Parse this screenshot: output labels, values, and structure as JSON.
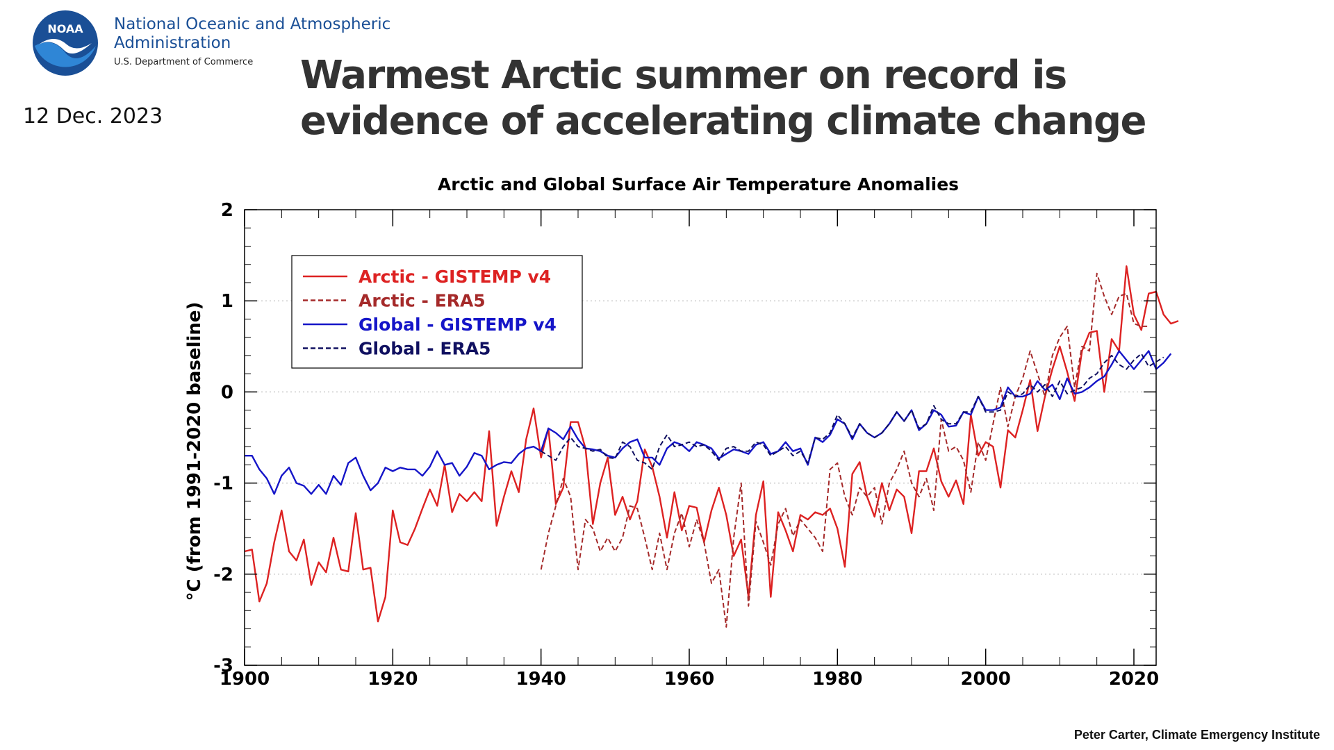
{
  "header": {
    "org_name_line1": "National Oceanic and Atmospheric",
    "org_name_line2": "Administration",
    "org_dept": "U.S. Department of Commerce",
    "logo_text": "NOAA",
    "date": "12 Dec. 2023",
    "headline": "Warmest Arctic summer on record is evidence of accelerating climate change"
  },
  "credit": "Peter Carter, Climate Emergency Institute",
  "colors": {
    "arctic_gistemp": "#dd2222",
    "arctic_era5": "#a52a2a",
    "global_gistemp": "#1515c8",
    "global_era5": "#101060",
    "noaa_blue": "#1a4f96"
  },
  "chart_data": {
    "type": "line",
    "title": "Arctic and Global Surface Air Temperature Anomalies",
    "xlabel": "",
    "ylabel": "°C (from 1991-2020 baseline)",
    "xlim": [
      1900,
      2023
    ],
    "ylim": [
      -3,
      2
    ],
    "x_ticks": [
      1900,
      1920,
      1940,
      1960,
      1980,
      2000,
      2020
    ],
    "y_ticks": [
      -3,
      -2,
      -1,
      0,
      1,
      2
    ],
    "grid": "horizontal dotted",
    "legend_position": "top-left",
    "series": [
      {
        "name": "Arctic - GISTEMP v4",
        "style": "solid",
        "color": "#dd2222",
        "x_start": 1900,
        "values": [
          -1.75,
          -1.73,
          -2.3,
          -2.1,
          -1.65,
          -1.3,
          -1.75,
          -1.85,
          -1.62,
          -2.12,
          -1.87,
          -1.98,
          -1.6,
          -1.95,
          -1.97,
          -1.33,
          -1.95,
          -1.93,
          -2.52,
          -2.25,
          -1.3,
          -1.65,
          -1.68,
          -1.5,
          -1.28,
          -1.07,
          -1.25,
          -0.8,
          -1.32,
          -1.12,
          -1.2,
          -1.1,
          -1.2,
          -0.43,
          -1.47,
          -1.15,
          -0.87,
          -1.1,
          -0.52,
          -0.18,
          -0.72,
          -0.4,
          -1.23,
          -1.05,
          -0.33,
          -0.33,
          -0.62,
          -1.45,
          -1.0,
          -0.72,
          -1.35,
          -1.15,
          -1.4,
          -1.2,
          -0.63,
          -0.82,
          -1.15,
          -1.6,
          -1.1,
          -1.52,
          -1.25,
          -1.27,
          -1.65,
          -1.3,
          -1.05,
          -1.35,
          -1.8,
          -1.62,
          -2.25,
          -1.35,
          -0.98,
          -2.25,
          -1.32,
          -1.52,
          -1.75,
          -1.35,
          -1.4,
          -1.32,
          -1.35,
          -1.28,
          -1.5,
          -1.92,
          -0.9,
          -0.77,
          -1.15,
          -1.37,
          -1.0,
          -1.3,
          -1.07,
          -1.15,
          -1.55,
          -0.87,
          -0.87,
          -0.62,
          -0.98,
          -1.15,
          -0.97,
          -1.23,
          -0.25,
          -0.7,
          -0.55,
          -0.6,
          -1.05,
          -0.42,
          -0.5,
          -0.2,
          0.13,
          -0.43,
          -0.05,
          0.25,
          0.5,
          0.22,
          -0.1,
          0.45,
          0.65,
          0.67,
          0.0,
          0.58,
          0.45,
          1.38,
          0.85,
          0.68,
          1.08,
          1.1,
          0.85,
          0.75,
          0.78
        ],
        "era5_note": ""
      },
      {
        "name": "Arctic - ERA5",
        "style": "dashed",
        "color": "#a52a2a",
        "x_start": 1940,
        "values": [
          -1.95,
          -1.55,
          -1.25,
          -0.95,
          -1.15,
          -1.95,
          -1.4,
          -1.5,
          -1.75,
          -1.6,
          -1.75,
          -1.6,
          -1.25,
          -1.28,
          -1.6,
          -1.95,
          -1.55,
          -1.95,
          -1.55,
          -1.33,
          -1.7,
          -1.4,
          -1.65,
          -2.1,
          -1.95,
          -2.58,
          -1.6,
          -1.0,
          -2.35,
          -1.42,
          -1.65,
          -1.9,
          -1.45,
          -1.28,
          -1.58,
          -1.4,
          -1.5,
          -1.6,
          -1.75,
          -0.85,
          -0.78,
          -1.15,
          -1.35,
          -1.05,
          -1.15,
          -1.05,
          -1.45,
          -1.0,
          -0.85,
          -0.65,
          -1.0,
          -1.15,
          -0.95,
          -1.3,
          -0.3,
          -0.65,
          -0.6,
          -0.75,
          -1.1,
          -0.55,
          -0.75,
          -0.35,
          0.05,
          -0.38,
          -0.05,
          0.15,
          0.45,
          0.2,
          -0.05,
          0.4,
          0.6,
          0.72,
          0.05,
          0.5,
          0.45,
          1.3,
          1.05,
          0.85,
          1.05,
          1.08,
          0.75,
          0.72,
          0.72
        ],
        "x_offset_note": ""
      },
      {
        "name": "Global - GISTEMP v4",
        "style": "solid",
        "color": "#1515c8",
        "x_start": 1900,
        "values": [
          -0.7,
          -0.7,
          -0.85,
          -0.95,
          -1.12,
          -0.92,
          -0.83,
          -1.0,
          -1.03,
          -1.12,
          -1.02,
          -1.12,
          -0.92,
          -1.02,
          -0.78,
          -0.72,
          -0.92,
          -1.08,
          -1.0,
          -0.83,
          -0.87,
          -0.83,
          -0.85,
          -0.85,
          -0.92,
          -0.82,
          -0.65,
          -0.8,
          -0.78,
          -0.92,
          -0.82,
          -0.67,
          -0.7,
          -0.85,
          -0.8,
          -0.77,
          -0.78,
          -0.68,
          -0.62,
          -0.6,
          -0.65,
          -0.4,
          -0.45,
          -0.52,
          -0.38,
          -0.52,
          -0.62,
          -0.63,
          -0.65,
          -0.7,
          -0.72,
          -0.62,
          -0.55,
          -0.52,
          -0.72,
          -0.72,
          -0.8,
          -0.62,
          -0.55,
          -0.58,
          -0.65,
          -0.55,
          -0.58,
          -0.62,
          -0.73,
          -0.68,
          -0.63,
          -0.65,
          -0.68,
          -0.58,
          -0.55,
          -0.68,
          -0.65,
          -0.55,
          -0.65,
          -0.62,
          -0.8,
          -0.5,
          -0.55,
          -0.47,
          -0.3,
          -0.35,
          -0.52,
          -0.35,
          -0.45,
          -0.5,
          -0.45,
          -0.35,
          -0.22,
          -0.32,
          -0.2,
          -0.42,
          -0.35,
          -0.2,
          -0.25,
          -0.38,
          -0.37,
          -0.22,
          -0.25,
          -0.05,
          -0.2,
          -0.2,
          -0.17,
          0.05,
          -0.05,
          -0.05,
          -0.02,
          0.12,
          0.02,
          0.08,
          -0.08,
          0.15,
          -0.02,
          0.0,
          0.05,
          0.12,
          0.17,
          0.3,
          0.45,
          0.35,
          0.25,
          0.35,
          0.45,
          0.25,
          0.32,
          0.42
        ],
        "x_offset_note": ""
      },
      {
        "name": "Global - ERA5",
        "style": "dashed",
        "color": "#101060",
        "x_start": 1940,
        "values": [
          -0.65,
          -0.7,
          -0.75,
          -0.6,
          -0.5,
          -0.6,
          -0.62,
          -0.65,
          -0.63,
          -0.72,
          -0.73,
          -0.55,
          -0.6,
          -0.75,
          -0.78,
          -0.85,
          -0.6,
          -0.47,
          -0.6,
          -0.58,
          -0.55,
          -0.6,
          -0.58,
          -0.65,
          -0.75,
          -0.62,
          -0.6,
          -0.65,
          -0.65,
          -0.55,
          -0.58,
          -0.7,
          -0.65,
          -0.6,
          -0.7,
          -0.65,
          -0.78,
          -0.5,
          -0.52,
          -0.45,
          -0.25,
          -0.35,
          -0.5,
          -0.35,
          -0.45,
          -0.5,
          -0.45,
          -0.35,
          -0.22,
          -0.32,
          -0.2,
          -0.4,
          -0.35,
          -0.15,
          -0.3,
          -0.35,
          -0.35,
          -0.22,
          -0.22,
          -0.05,
          -0.22,
          -0.22,
          -0.2,
          0.0,
          -0.05,
          -0.02,
          0.08,
          0.0,
          0.08,
          -0.05,
          0.12,
          -0.02,
          0.02,
          0.05,
          0.15,
          0.2,
          0.32,
          0.4,
          0.3,
          0.25,
          0.35,
          0.42,
          0.28,
          0.33,
          0.38
        ]
      }
    ]
  }
}
